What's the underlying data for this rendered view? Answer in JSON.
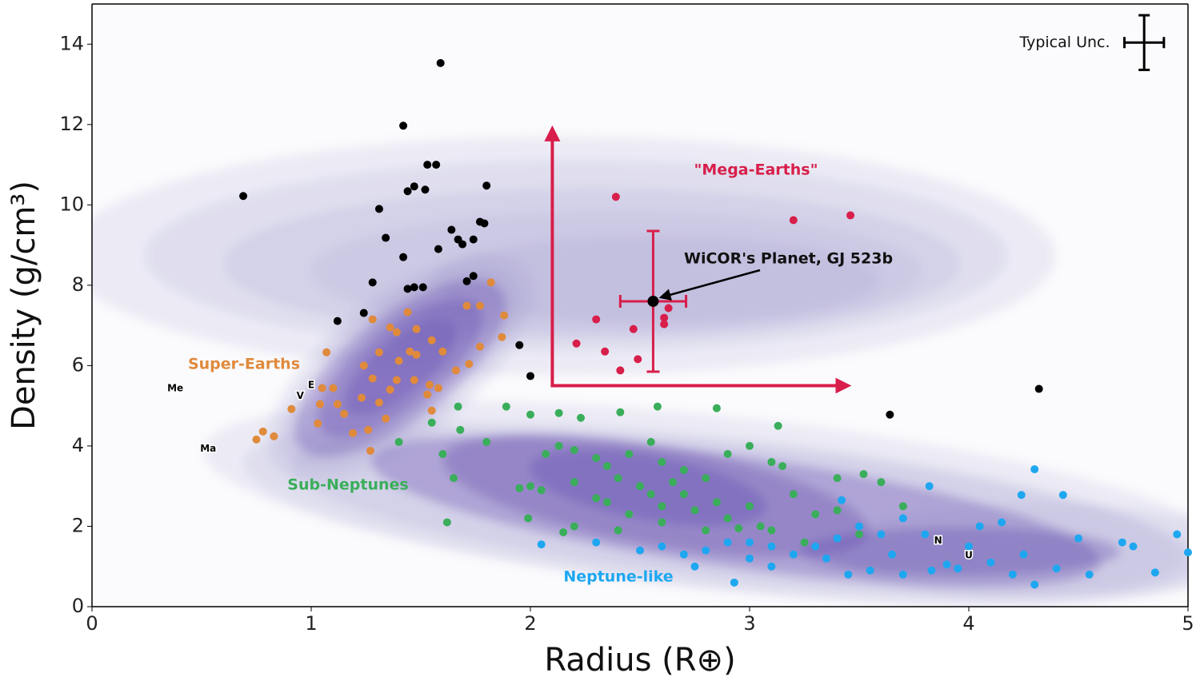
{
  "chart_data": {
    "type": "scatter",
    "xlabel": "Radius (R⊕)",
    "ylabel": "Density (g/cm³)",
    "xlim": [
      0,
      5
    ],
    "ylim": [
      0,
      15
    ],
    "xticks": [
      0,
      1,
      2,
      3,
      4,
      5
    ],
    "yticks": [
      0,
      2,
      4,
      6,
      8,
      10,
      12,
      14
    ],
    "series": [
      {
        "color": "#000000",
        "x": [
          0.69,
          1.59,
          1.42,
          1.53,
          1.57,
          1.47,
          1.44,
          1.52,
          1.8,
          1.31,
          1.34,
          1.64,
          1.67,
          1.69,
          1.74,
          1.77,
          1.79,
          1.58,
          1.42,
          1.28,
          1.44,
          1.47,
          1.51,
          1.71,
          1.74,
          1.24,
          1.12,
          1.95,
          2.0,
          3.64,
          4.32
        ],
        "y": [
          10.22,
          13.53,
          11.97,
          11.0,
          11.0,
          10.46,
          10.34,
          10.38,
          10.48,
          9.9,
          9.18,
          9.38,
          9.14,
          9.02,
          9.14,
          9.58,
          9.54,
          8.9,
          8.7,
          8.07,
          7.91,
          7.95,
          7.95,
          8.1,
          8.23,
          7.31,
          7.11,
          6.51,
          5.74,
          4.78,
          5.42
        ]
      },
      {
        "name": "\"Mega-Earths\"",
        "color": "#d81e4a",
        "x": [
          2.39,
          3.2,
          3.46,
          2.3,
          2.47,
          2.61,
          2.63,
          2.61,
          2.21,
          2.34,
          2.49,
          2.41
        ],
        "y": [
          10.2,
          9.62,
          9.74,
          7.15,
          6.91,
          7.19,
          7.43,
          7.03,
          6.55,
          6.35,
          6.16,
          5.88
        ]
      },
      {
        "name": "Super-Earths",
        "color": "#e08a3c",
        "x": [
          1.82,
          1.71,
          1.77,
          1.88,
          1.28,
          1.44,
          1.36,
          1.39,
          1.48,
          1.55,
          1.6,
          1.77,
          1.87,
          1.31,
          1.4,
          1.48,
          1.07,
          1.24,
          1.66,
          1.28,
          1.39,
          1.47,
          1.54,
          1.36,
          1.05,
          1.1,
          1.58,
          1.53,
          1.23,
          1.04,
          1.12,
          1.31,
          0.91,
          1.15,
          1.34,
          1.03,
          1.55,
          1.19,
          1.26,
          0.83,
          0.78,
          0.75,
          1.27,
          1.45,
          1.72
        ],
        "y": [
          8.07,
          7.49,
          7.49,
          7.25,
          7.15,
          7.33,
          6.95,
          6.83,
          6.91,
          6.63,
          6.35,
          6.47,
          6.71,
          6.33,
          6.12,
          6.27,
          6.33,
          6.0,
          5.88,
          5.68,
          5.64,
          5.64,
          5.52,
          5.4,
          5.44,
          5.44,
          5.44,
          5.28,
          5.2,
          5.04,
          5.04,
          5.08,
          4.92,
          4.8,
          4.68,
          4.56,
          4.88,
          4.32,
          4.4,
          4.24,
          4.36,
          4.16,
          3.88,
          6.35,
          6.04
        ]
      },
      {
        "name": "Sub-Neptunes",
        "color": "#3aae5a",
        "x": [
          1.67,
          1.55,
          1.68,
          1.89,
          2.0,
          2.13,
          2.23,
          2.41,
          2.58,
          2.85,
          3.13,
          1.8,
          1.4,
          1.6,
          1.65,
          1.62,
          1.99,
          2.07,
          2.13,
          2.2,
          2.3,
          2.35,
          2.45,
          2.55,
          2.6,
          2.7,
          2.8,
          2.9,
          3.0,
          3.1,
          2.0,
          2.05,
          2.2,
          2.3,
          2.4,
          2.5,
          2.55,
          2.6,
          2.7,
          2.75,
          2.85,
          2.9,
          3.0,
          3.05,
          3.1,
          3.2,
          3.3,
          3.4,
          3.5,
          3.6,
          3.7,
          3.4,
          3.52,
          2.2,
          2.4,
          2.6,
          2.8,
          2.35,
          2.45,
          2.65,
          1.95,
          2.15,
          3.15,
          2.95,
          3.25
        ],
        "y": [
          4.98,
          4.58,
          4.4,
          4.98,
          4.78,
          4.82,
          4.7,
          4.84,
          4.98,
          4.94,
          4.5,
          4.1,
          4.1,
          3.8,
          3.2,
          2.1,
          2.2,
          3.8,
          4.0,
          3.9,
          3.7,
          3.5,
          3.8,
          4.1,
          3.6,
          3.4,
          3.2,
          3.8,
          4.0,
          3.6,
          3.0,
          2.9,
          3.1,
          2.7,
          3.2,
          3.0,
          2.8,
          2.5,
          2.8,
          2.4,
          2.6,
          2.2,
          2.5,
          2.0,
          1.9,
          2.8,
          2.3,
          2.4,
          1.8,
          3.1,
          2.5,
          3.2,
          3.3,
          2.0,
          1.9,
          2.1,
          1.9,
          2.6,
          2.3,
          3.1,
          2.95,
          1.85,
          3.5,
          1.95,
          1.6
        ]
      },
      {
        "name": "Neptune-like",
        "color": "#1ea7f0",
        "x": [
          3.42,
          3.82,
          4.3,
          4.24,
          4.43,
          3.5,
          3.6,
          3.7,
          3.4,
          3.3,
          3.2,
          3.1,
          3.0,
          2.9,
          2.8,
          2.7,
          2.6,
          2.5,
          2.3,
          2.05,
          3.0,
          3.1,
          2.93,
          3.45,
          3.55,
          3.7,
          3.83,
          3.9,
          4.0,
          4.05,
          4.1,
          4.2,
          4.3,
          4.4,
          4.5,
          4.55,
          4.7,
          4.75,
          4.85,
          4.95,
          5.0,
          4.25,
          3.95,
          4.15,
          3.65,
          3.35,
          2.75,
          3.8
        ],
        "y": [
          2.65,
          3.0,
          3.42,
          2.78,
          2.78,
          2.0,
          1.8,
          2.2,
          1.7,
          1.5,
          1.3,
          1.5,
          1.6,
          1.6,
          1.4,
          1.3,
          1.5,
          1.4,
          1.6,
          1.55,
          1.2,
          1.0,
          0.6,
          0.8,
          0.9,
          0.8,
          0.9,
          1.05,
          1.5,
          2.0,
          1.1,
          0.8,
          0.55,
          0.95,
          1.7,
          0.8,
          1.6,
          1.5,
          0.85,
          1.8,
          1.35,
          1.3,
          0.95,
          2.1,
          1.3,
          1.2,
          1.0,
          1.8
        ]
      }
    ],
    "solar_system": [
      {
        "label": "Me",
        "x": 0.38,
        "y": 5.43
      },
      {
        "label": "V",
        "x": 0.95,
        "y": 5.24
      },
      {
        "label": "E",
        "x": 1.0,
        "y": 5.51
      },
      {
        "label": "Ma",
        "x": 0.53,
        "y": 3.93
      },
      {
        "label": "N",
        "x": 3.86,
        "y": 1.64
      },
      {
        "label": "U",
        "x": 4.0,
        "y": 1.27
      }
    ],
    "highlight": {
      "label": "WiCOR's Planet, GJ 523b",
      "color": "#d81e4a",
      "x": 2.56,
      "y": 7.6,
      "xerr": 0.15,
      "yerr": 1.75
    },
    "region": {
      "color": "#d81e4a",
      "x": 2.1,
      "y": 5.5,
      "x_end": 3.45,
      "y_end": 11.9
    },
    "typical_uncertainty": {
      "label": "Typical Unc.",
      "x": 4.8,
      "y": 14.04,
      "xerr": 0.09,
      "yerr": 0.68
    }
  }
}
